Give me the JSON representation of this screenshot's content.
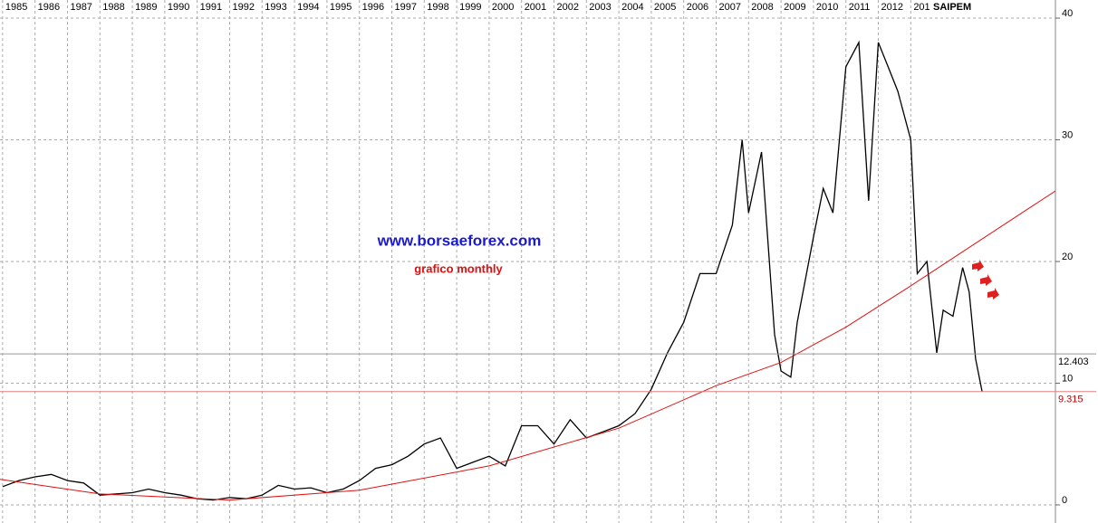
{
  "chart_data": {
    "type": "line",
    "title": "SAIPEM",
    "annotations": [
      "www.borsaeforex.com",
      "grafico monthly"
    ],
    "xlim": [
      1984.92,
      2017.46
    ],
    "ylim": [
      -1.49,
      41.49
    ],
    "xticks": [
      1985,
      1986,
      1987,
      1988,
      1989,
      1990,
      1991,
      1992,
      1993,
      1994,
      1995,
      1996,
      1997,
      1998,
      1999,
      2000,
      2001,
      2002,
      2003,
      2004,
      2005,
      2006,
      2007,
      2008,
      2009,
      2010,
      2011,
      2012,
      {
        "value": 2013,
        "label": "201"
      }
    ],
    "yticks": [
      0,
      10,
      20,
      30,
      40
    ],
    "grid": true,
    "price_labels": [
      12.403,
      9.315
    ],
    "series": [
      {
        "color": "#000000",
        "x": [
          1985,
          1985.5,
          1986,
          1986.5,
          1987,
          1987.5,
          1988,
          1988.5,
          1989,
          1989.5,
          1990,
          1990.5,
          1991,
          1991.5,
          1992,
          1992.5,
          1993,
          1993.5,
          1994,
          1994.5,
          1995,
          1995.5,
          1996,
          1996.5,
          1997,
          1997.5,
          1998,
          1998.5,
          1999,
          1999.5,
          2000,
          2000.5,
          2001,
          2001.5,
          2002,
          2002.5,
          2003,
          2003.5,
          2004,
          2004.5,
          2005,
          2005.5,
          2006,
          2006.5,
          2007,
          2007.5,
          2007.8,
          2008,
          2008.4,
          2008.8,
          2009,
          2009.3,
          2009.5,
          2010,
          2010.3,
          2010.6,
          2011,
          2011.4,
          2011.7,
          2012,
          2012.3,
          2012.6,
          2013,
          2013.2,
          2013.5,
          2013.8,
          2014,
          2014.3,
          2014.6,
          2014.8,
          2015,
          2015.2
        ],
        "values": [
          1.5,
          2,
          2.3,
          2.5,
          2,
          1.8,
          0.8,
          0.9,
          1,
          1.3,
          1,
          0.8,
          0.5,
          0.4,
          0.6,
          0.5,
          0.8,
          1.6,
          1.3,
          1.4,
          1,
          1.3,
          2,
          3,
          3.3,
          4,
          5,
          5.5,
          3,
          3.5,
          4,
          3.2,
          6.5,
          6.5,
          5,
          7,
          5.5,
          6,
          6.5,
          7.5,
          9.5,
          12.5,
          15,
          19,
          19,
          23,
          30,
          24,
          29,
          14,
          11,
          10.5,
          15,
          22,
          26,
          24,
          36,
          38,
          25,
          38,
          36,
          34,
          30,
          19,
          20,
          12.5,
          16,
          15.5,
          19.5,
          17.5,
          12,
          9.3
        ]
      },
      {
        "color": "#e01010",
        "x": [
          1984.92,
          1988,
          1992,
          1996,
          2000,
          2004,
          2007,
          2009,
          2011,
          2013,
          2015,
          2017.46
        ],
        "values": [
          2.1,
          0.9,
          0.4,
          1.2,
          3.2,
          6.3,
          9.8,
          11.7,
          14.6,
          18,
          21.5,
          25.8
        ]
      }
    ]
  }
}
